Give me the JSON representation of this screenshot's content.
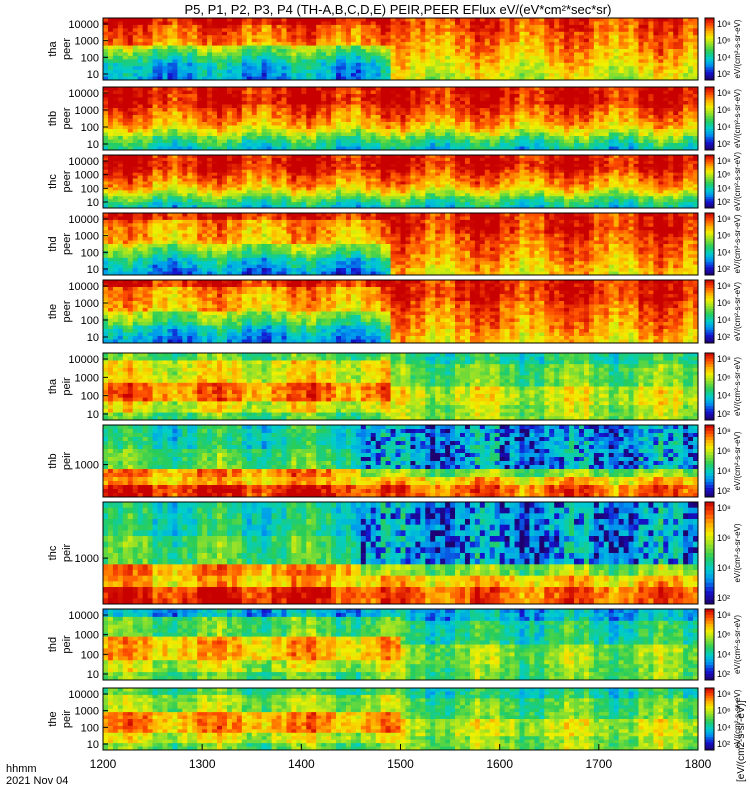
{
  "chart_data": {
    "type": "heatmap",
    "title": "P5, P1, P2, P3, P4 (TH-A,B,C,D,E) PEIR,PEER EFlux eV/(eV*cm²*sec*sr)",
    "x": {
      "ticks": [
        1200,
        1300,
        1400,
        1500,
        1600,
        1700,
        1800
      ],
      "range": [
        1200,
        1800
      ],
      "label_line1": "hhmm",
      "label_line2": "2021 Nov 04"
    },
    "colorbar": {
      "unit_label": "eV/(cm²-s-sr-eV)",
      "bottom_label": "[eV/(cm2-s-sr-eV)]"
    },
    "panels": [
      {
        "id": "tha-peer",
        "line1": "tha",
        "line2": "peer",
        "ticks": [
          "10",
          "100",
          "1000",
          "10000"
        ],
        "cbar_ticks": [
          "10²",
          "10⁴",
          "10⁶",
          "10⁸"
        ],
        "regime": "electron_a"
      },
      {
        "id": "thb-peer",
        "line1": "thb",
        "line2": "peer",
        "ticks": [
          "10",
          "100",
          "1000",
          "10000"
        ],
        "cbar_ticks": [
          "10²",
          "10⁴",
          "10⁶",
          "10⁸"
        ],
        "regime": "electron_flat"
      },
      {
        "id": "thc-peer",
        "line1": "thc",
        "line2": "peer",
        "ticks": [
          "10",
          "100",
          "1000",
          "10000"
        ],
        "cbar_ticks": [
          "10²",
          "10⁴",
          "10⁶",
          "10⁸"
        ],
        "regime": "electron_flat"
      },
      {
        "id": "thd-peer",
        "line1": "thd",
        "line2": "peer",
        "ticks": [
          "10",
          "100",
          "1000",
          "10000"
        ],
        "cbar_ticks": [
          "10²",
          "10⁴",
          "10⁶",
          "10⁸"
        ],
        "regime": "electron_de"
      },
      {
        "id": "the-peer",
        "line1": "the",
        "line2": "peer",
        "ticks": [
          "10",
          "100",
          "1000",
          "10000"
        ],
        "cbar_ticks": [
          "10²",
          "10⁴",
          "10⁶",
          "10⁸"
        ],
        "regime": "electron_de"
      },
      {
        "id": "tha-peir",
        "line1": "tha",
        "line2": "peir",
        "ticks": [
          "10",
          "100",
          "1000",
          "10000"
        ],
        "cbar_ticks": [
          "10²",
          "10⁴",
          "10⁶",
          "10⁸"
        ],
        "regime": "ion_a"
      },
      {
        "id": "thb-peir",
        "line1": "thb",
        "line2": "peir",
        "ticks": [
          "1000"
        ],
        "cbar_ticks": [
          "10²",
          "10⁴",
          "10⁶",
          "10⁸"
        ],
        "regime": "ion_bc"
      },
      {
        "id": "thc-peir",
        "line1": "thc",
        "line2": "peir",
        "ticks": [
          "1000"
        ],
        "cbar_ticks": [
          "10²",
          "10⁴",
          "10⁶",
          "10⁸"
        ],
        "regime": "ion_bc"
      },
      {
        "id": "thd-peir",
        "line1": "thd",
        "line2": "peir",
        "ticks": [
          "10",
          "100",
          "1000",
          "10000"
        ],
        "cbar_ticks": [
          "10²",
          "10⁴",
          "10⁶",
          "10⁸"
        ],
        "regime": "ion_d"
      },
      {
        "id": "the-peir",
        "line1": "the",
        "line2": "peir",
        "ticks": [
          "10",
          "100",
          "1000",
          "10000"
        ],
        "cbar_ticks": [
          "10²",
          "10⁴",
          "10⁶",
          "10⁸"
        ],
        "regime": "ion_e"
      }
    ]
  }
}
